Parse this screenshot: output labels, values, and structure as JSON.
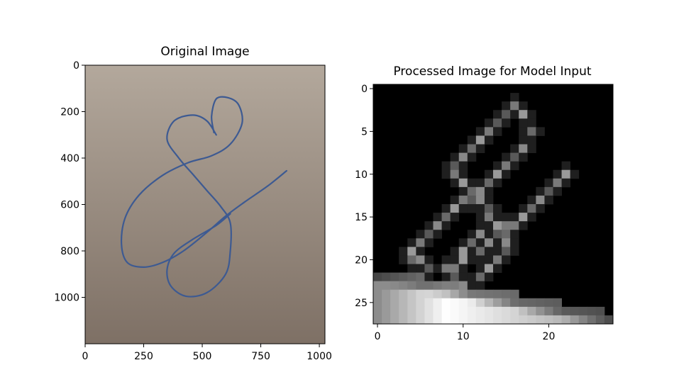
{
  "chart_data": [
    {
      "type": "image",
      "title": "Original Image",
      "xlim": [
        0,
        1024
      ],
      "ylim": [
        1200,
        0
      ],
      "x_ticks": [
        0,
        250,
        500,
        750,
        1000
      ],
      "y_ticks": [
        0,
        200,
        400,
        600,
        800,
        1000
      ],
      "x_tick_labels": [
        "0",
        "250",
        "500",
        "750",
        "1000"
      ],
      "y_tick_labels": [
        "0",
        "200",
        "400",
        "600",
        "800",
        "1000"
      ],
      "colors": {
        "paper_top": "#b3a89c",
        "paper_bottom": "#7e7065",
        "ink": "#3d5a92"
      },
      "stroke_points": [
        [
          550,
          290
        ],
        [
          540,
          220
        ],
        [
          560,
          145
        ],
        [
          610,
          140
        ],
        [
          655,
          170
        ],
        [
          670,
          250
        ],
        [
          620,
          340
        ],
        [
          540,
          390
        ],
        [
          440,
          420
        ],
        [
          330,
          475
        ],
        [
          230,
          560
        ],
        [
          170,
          660
        ],
        [
          155,
          770
        ],
        [
          180,
          850
        ],
        [
          250,
          870
        ],
        [
          330,
          850
        ],
        [
          420,
          800
        ],
        [
          520,
          720
        ],
        [
          600,
          650
        ],
        [
          680,
          590
        ],
        [
          780,
          520
        ],
        [
          860,
          455
        ]
      ],
      "loop_points": [
        [
          560,
          300
        ],
        [
          520,
          240
        ],
        [
          460,
          215
        ],
        [
          380,
          240
        ],
        [
          350,
          320
        ],
        [
          400,
          400
        ],
        [
          460,
          470
        ],
        [
          520,
          540
        ],
        [
          580,
          610
        ],
        [
          620,
          680
        ],
        [
          620,
          800
        ],
        [
          600,
          900
        ],
        [
          520,
          980
        ],
        [
          430,
          995
        ],
        [
          365,
          950
        ],
        [
          350,
          880
        ],
        [
          380,
          810
        ],
        [
          460,
          750
        ],
        [
          560,
          690
        ],
        [
          620,
          640
        ]
      ]
    },
    {
      "type": "heatmap",
      "title": "Processed Image for Model Input",
      "grid_size": [
        28,
        28
      ],
      "xlim": [
        -0.5,
        27.5
      ],
      "ylim": [
        27.5,
        -0.5
      ],
      "x_ticks": [
        0,
        10,
        20
      ],
      "y_ticks": [
        0,
        5,
        10,
        15,
        20,
        25
      ],
      "x_tick_labels": [
        "0",
        "10",
        "20"
      ],
      "y_tick_labels": [
        "0",
        "5",
        "10",
        "15",
        "20",
        "25"
      ],
      "stroke_path": [
        [
          15,
          3
        ],
        [
          16,
          2
        ],
        [
          17,
          3
        ],
        [
          18,
          5
        ],
        [
          17,
          7
        ],
        [
          16,
          8
        ],
        [
          15,
          9
        ],
        [
          14,
          10
        ],
        [
          13,
          11
        ],
        [
          12,
          12
        ],
        [
          11,
          13
        ],
        [
          10,
          13
        ],
        [
          9,
          14
        ],
        [
          8,
          15
        ],
        [
          7,
          16
        ],
        [
          6,
          17
        ],
        [
          5,
          18
        ],
        [
          4,
          19
        ],
        [
          4,
          20
        ],
        [
          5,
          20
        ],
        [
          6,
          21
        ],
        [
          8,
          21
        ],
        [
          10,
          20
        ],
        [
          12,
          19
        ],
        [
          13,
          18
        ],
        [
          14,
          17
        ],
        [
          16,
          16
        ],
        [
          17,
          15
        ],
        [
          18,
          14
        ],
        [
          19,
          13
        ],
        [
          20,
          12
        ],
        [
          21,
          11
        ],
        [
          22,
          10
        ]
      ],
      "loop_path": [
        [
          14,
          4
        ],
        [
          13,
          5
        ],
        [
          12,
          6
        ],
        [
          11,
          7
        ],
        [
          10,
          8
        ],
        [
          9,
          9
        ],
        [
          9,
          10
        ],
        [
          10,
          11
        ],
        [
          11,
          12
        ],
        [
          12,
          13
        ],
        [
          13,
          14
        ],
        [
          13,
          15
        ],
        [
          14,
          16
        ],
        [
          15,
          17
        ],
        [
          15,
          18
        ],
        [
          15,
          19
        ],
        [
          14,
          20
        ],
        [
          13,
          21
        ],
        [
          12,
          22
        ],
        [
          10,
          23
        ],
        [
          9,
          22
        ],
        [
          9,
          21
        ],
        [
          10,
          19
        ],
        [
          11,
          18
        ],
        [
          12,
          17
        ],
        [
          14,
          16
        ],
        [
          15,
          16
        ]
      ],
      "bottom_band": {
        "left_edge_row": 22,
        "right_edge_row": 27,
        "intensity_left": 0.55,
        "intensity_mid": 1.0,
        "intensity_right": 0.6
      }
    }
  ]
}
